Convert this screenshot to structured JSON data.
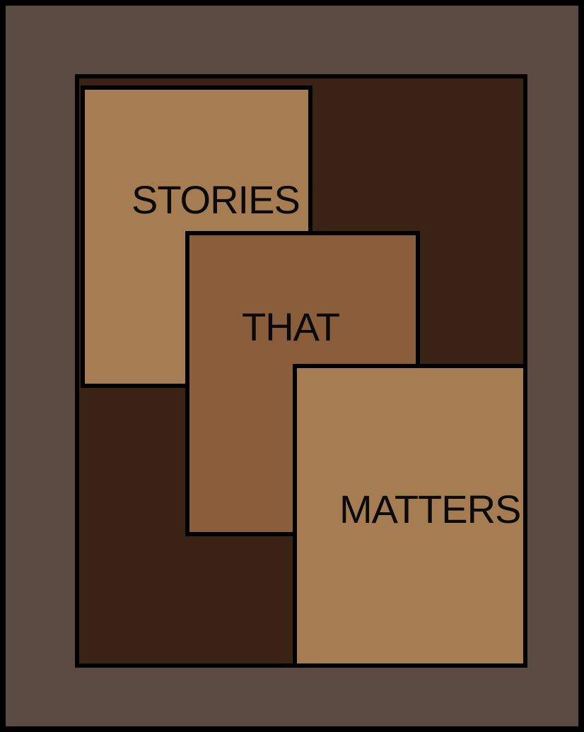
{
  "colors": {
    "outer_frame": "#5a4a42",
    "background_block": "#3a2214",
    "panel_light": "#a67c52",
    "panel_medium": "#8a5d3b",
    "outline": "#000000"
  },
  "panels": [
    {
      "id": "stories",
      "text": "STORIES",
      "color": "#a67c52"
    },
    {
      "id": "that",
      "text": "THAT",
      "color": "#8a5d3b"
    },
    {
      "id": "matters",
      "text": "MATTERS",
      "color": "#a67c52"
    }
  ]
}
